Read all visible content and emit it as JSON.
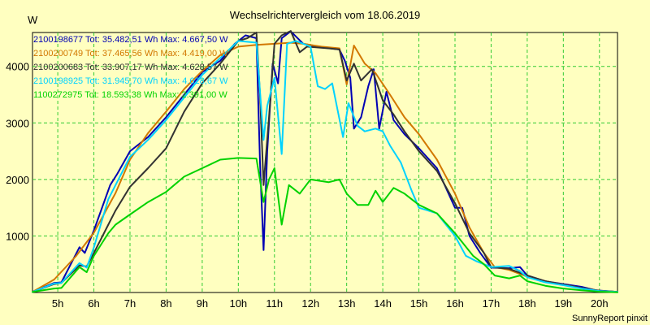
{
  "chart_data": {
    "type": "line",
    "title": "Wechselrichtervergleich vom 18.06.2019",
    "ylabel": "W",
    "xlabel": "",
    "footer": "SunnyReport pinxit",
    "xlim": [
      4.3,
      20.5
    ],
    "ylim": [
      0,
      4600
    ],
    "x_ticks": [
      5,
      6,
      7,
      8,
      9,
      10,
      11,
      12,
      13,
      14,
      15,
      16,
      17,
      18,
      19,
      20
    ],
    "x_tick_labels": [
      "5h",
      "6h",
      "7h",
      "8h",
      "9h",
      "10h",
      "11h",
      "12h",
      "13h",
      "14h",
      "15h",
      "16h",
      "17h",
      "18h",
      "19h",
      "20h"
    ],
    "y_ticks": [
      1000,
      2000,
      3000,
      4000
    ],
    "y_tick_labels": [
      "1000",
      "2000",
      "3000",
      "4000"
    ],
    "grid": true,
    "legend_position": "top-left",
    "background_color": "#ffffc0",
    "grid_color": "#33cc33",
    "series": [
      {
        "name": "2100198677 Tot: 35.482,51 Wh Max: 4.667,50 W",
        "color": "#0000b4",
        "points": [
          [
            4.3,
            10
          ],
          [
            4.9,
            170
          ],
          [
            5.1,
            180
          ],
          [
            5.6,
            800
          ],
          [
            5.75,
            700
          ],
          [
            6,
            1100
          ],
          [
            6.45,
            1900
          ],
          [
            6.65,
            2100
          ],
          [
            7,
            2500
          ],
          [
            7.5,
            2750
          ],
          [
            8,
            3100
          ],
          [
            8.5,
            3500
          ],
          [
            9,
            3900
          ],
          [
            9.5,
            4100
          ],
          [
            9.9,
            4400
          ],
          [
            10.2,
            4550
          ],
          [
            10.5,
            4500
          ],
          [
            10.6,
            2300
          ],
          [
            10.7,
            750
          ],
          [
            10.8,
            2500
          ],
          [
            10.95,
            4050
          ],
          [
            11.1,
            3700
          ],
          [
            11.2,
            4500
          ],
          [
            11.45,
            4620
          ],
          [
            11.8,
            4400
          ],
          [
            12.4,
            4330
          ],
          [
            12.8,
            4300
          ],
          [
            12.95,
            4100
          ],
          [
            13.1,
            3800
          ],
          [
            13.2,
            2900
          ],
          [
            13.4,
            3100
          ],
          [
            13.6,
            3650
          ],
          [
            13.75,
            3950
          ],
          [
            13.9,
            2900
          ],
          [
            14.1,
            3550
          ],
          [
            14.3,
            3050
          ],
          [
            14.6,
            2800
          ],
          [
            15,
            2550
          ],
          [
            15.5,
            2200
          ],
          [
            16,
            1500
          ],
          [
            16.2,
            1500
          ],
          [
            16.4,
            1000
          ],
          [
            16.7,
            700
          ],
          [
            17,
            440
          ],
          [
            17.5,
            430
          ],
          [
            17.8,
            450
          ],
          [
            18,
            300
          ],
          [
            18.5,
            200
          ],
          [
            19,
            150
          ],
          [
            19.5,
            100
          ],
          [
            19.9,
            40
          ],
          [
            20.5,
            10
          ]
        ]
      },
      {
        "name": "2100200749 Tot: 37.465,56 Wh Max: 4.419,00 W",
        "color": "#d27800",
        "points": [
          [
            4.3,
            10
          ],
          [
            4.9,
            230
          ],
          [
            5.5,
            640
          ],
          [
            6,
            1060
          ],
          [
            6.6,
            1760
          ],
          [
            7,
            2350
          ],
          [
            7.5,
            2820
          ],
          [
            8,
            3200
          ],
          [
            8.5,
            3600
          ],
          [
            9,
            3920
          ],
          [
            9.5,
            4200
          ],
          [
            10,
            4350
          ],
          [
            10.5,
            4380
          ],
          [
            11,
            4400
          ],
          [
            11.45,
            4419
          ],
          [
            11.8,
            4400
          ],
          [
            12.3,
            4350
          ],
          [
            12.8,
            4320
          ],
          [
            13,
            3680
          ],
          [
            13.2,
            4370
          ],
          [
            13.5,
            4050
          ],
          [
            13.8,
            3880
          ],
          [
            14.2,
            3500
          ],
          [
            14.6,
            3100
          ],
          [
            15,
            2800
          ],
          [
            15.5,
            2350
          ],
          [
            16,
            1750
          ],
          [
            16.4,
            1150
          ],
          [
            16.8,
            700
          ],
          [
            17.1,
            450
          ],
          [
            17.5,
            400
          ],
          [
            18,
            280
          ],
          [
            18.5,
            200
          ],
          [
            19,
            140
          ],
          [
            19.5,
            80
          ],
          [
            20,
            30
          ],
          [
            20.5,
            10
          ]
        ]
      },
      {
        "name": "2100200683 Tot: 33.907,17 Wh Max: 4.628,57 W",
        "color": "#323232",
        "points": [
          [
            4.3,
            10
          ],
          [
            4.9,
            150
          ],
          [
            5.1,
            170
          ],
          [
            5.6,
            480
          ],
          [
            5.8,
            460
          ],
          [
            6,
            700
          ],
          [
            6.4,
            1200
          ],
          [
            6.6,
            1450
          ],
          [
            7,
            1870
          ],
          [
            7.5,
            2200
          ],
          [
            8,
            2550
          ],
          [
            8.5,
            3200
          ],
          [
            9,
            3700
          ],
          [
            9.5,
            4050
          ],
          [
            10,
            4450
          ],
          [
            10.25,
            4500
          ],
          [
            10.5,
            4600
          ],
          [
            10.6,
            3500
          ],
          [
            10.7,
            1900
          ],
          [
            10.85,
            3100
          ],
          [
            11,
            4400
          ],
          [
            11.2,
            4550
          ],
          [
            11.45,
            4628
          ],
          [
            11.7,
            4250
          ],
          [
            11.9,
            4350
          ],
          [
            12.5,
            4320
          ],
          [
            12.8,
            4300
          ],
          [
            13,
            3750
          ],
          [
            13.2,
            4050
          ],
          [
            13.4,
            3750
          ],
          [
            13.7,
            3950
          ],
          [
            14,
            3400
          ],
          [
            14.3,
            3150
          ],
          [
            14.6,
            2850
          ],
          [
            15,
            2500
          ],
          [
            15.5,
            2150
          ],
          [
            16,
            1580
          ],
          [
            16.4,
            1050
          ],
          [
            16.8,
            700
          ],
          [
            17,
            450
          ],
          [
            17.5,
            420
          ],
          [
            18,
            300
          ],
          [
            18.5,
            200
          ],
          [
            19,
            140
          ],
          [
            19.5,
            80
          ],
          [
            20,
            30
          ],
          [
            20.5,
            10
          ]
        ]
      },
      {
        "name": "2100198925 Tot: 31.945,70 Wh Max: 4.628,67 W",
        "color": "#00d2ff",
        "points": [
          [
            4.3,
            10
          ],
          [
            4.9,
            160
          ],
          [
            5.1,
            170
          ],
          [
            5.6,
            520
          ],
          [
            5.8,
            440
          ],
          [
            6,
            800
          ],
          [
            6.4,
            1650
          ],
          [
            6.6,
            1900
          ],
          [
            7,
            2400
          ],
          [
            7.5,
            2700
          ],
          [
            8,
            3050
          ],
          [
            8.5,
            3450
          ],
          [
            9,
            3850
          ],
          [
            9.5,
            4150
          ],
          [
            10,
            4450
          ],
          [
            10.5,
            4420
          ],
          [
            10.7,
            2700
          ],
          [
            10.8,
            3300
          ],
          [
            11,
            3800
          ],
          [
            11.2,
            2450
          ],
          [
            11.35,
            4400
          ],
          [
            11.6,
            4450
          ],
          [
            12,
            4350
          ],
          [
            12.2,
            3650
          ],
          [
            12.4,
            3600
          ],
          [
            12.6,
            3700
          ],
          [
            12.9,
            2750
          ],
          [
            13.05,
            3350
          ],
          [
            13.3,
            2950
          ],
          [
            13.5,
            2850
          ],
          [
            13.8,
            2900
          ],
          [
            14,
            2850
          ],
          [
            14.2,
            2600
          ],
          [
            14.5,
            2300
          ],
          [
            14.8,
            1800
          ],
          [
            15,
            1500
          ],
          [
            15.5,
            1400
          ],
          [
            16,
            1000
          ],
          [
            16.3,
            650
          ],
          [
            16.6,
            550
          ],
          [
            17,
            450
          ],
          [
            17.5,
            470
          ],
          [
            17.8,
            380
          ],
          [
            18,
            270
          ],
          [
            18.5,
            180
          ],
          [
            19,
            130
          ],
          [
            19.5,
            70
          ],
          [
            20,
            25
          ],
          [
            20.5,
            10
          ]
        ]
      },
      {
        "name": "1100272975 Tot: 18.593,38 Wh Max: 2.391,00 W",
        "color": "#00d200",
        "points": [
          [
            4.3,
            10
          ],
          [
            4.9,
            70
          ],
          [
            5.1,
            80
          ],
          [
            5.6,
            450
          ],
          [
            5.8,
            360
          ],
          [
            6,
            650
          ],
          [
            6.4,
            1050
          ],
          [
            6.6,
            1200
          ],
          [
            7,
            1380
          ],
          [
            7.5,
            1600
          ],
          [
            8,
            1780
          ],
          [
            8.5,
            2050
          ],
          [
            9,
            2200
          ],
          [
            9.5,
            2350
          ],
          [
            10,
            2380
          ],
          [
            10.5,
            2370
          ],
          [
            10.7,
            1600
          ],
          [
            10.85,
            2000
          ],
          [
            11,
            2200
          ],
          [
            11.2,
            1200
          ],
          [
            11.4,
            1900
          ],
          [
            11.7,
            1750
          ],
          [
            12,
            2000
          ],
          [
            12.5,
            1950
          ],
          [
            12.8,
            2000
          ],
          [
            13,
            1750
          ],
          [
            13.3,
            1550
          ],
          [
            13.6,
            1550
          ],
          [
            13.8,
            1800
          ],
          [
            14,
            1600
          ],
          [
            14.3,
            1850
          ],
          [
            14.6,
            1750
          ],
          [
            15,
            1550
          ],
          [
            15.5,
            1400
          ],
          [
            16,
            1050
          ],
          [
            16.5,
            650
          ],
          [
            16.8,
            500
          ],
          [
            17.1,
            300
          ],
          [
            17.5,
            250
          ],
          [
            17.8,
            300
          ],
          [
            18,
            200
          ],
          [
            18.5,
            120
          ],
          [
            19,
            70
          ],
          [
            19.5,
            40
          ],
          [
            20,
            15
          ],
          [
            20.5,
            5
          ]
        ]
      }
    ]
  }
}
